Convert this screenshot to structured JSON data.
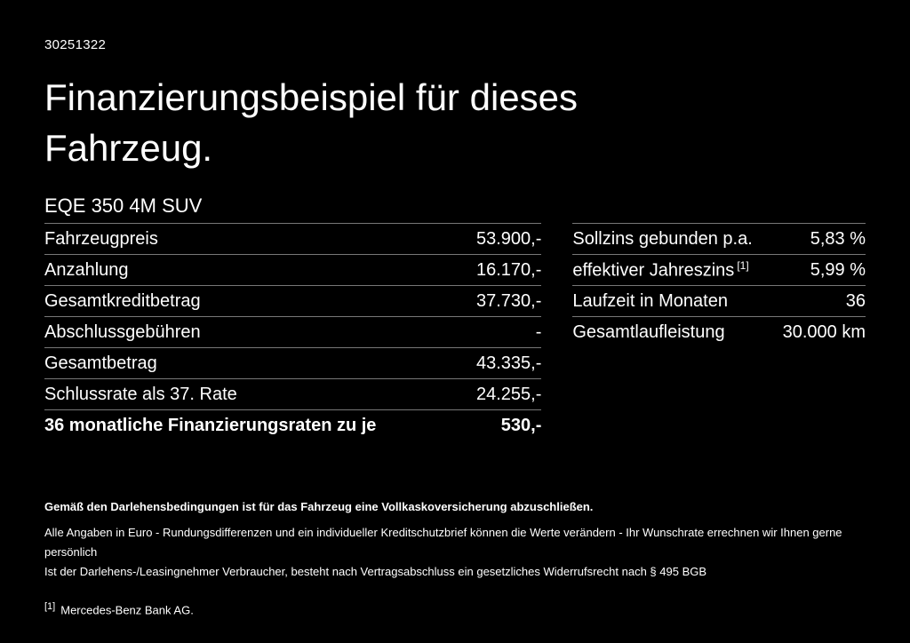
{
  "page": {
    "doc_number": "30251322",
    "title": "Finanzierungsbeispiel für dieses Fahrzeug.",
    "vehicle_model": "EQE 350 4M SUV"
  },
  "financing_table": {
    "rows": [
      {
        "label": "Fahrzeugpreis",
        "value": "53.900,-"
      },
      {
        "label": "Anzahlung",
        "value": "16.170,-"
      },
      {
        "label": "Gesamtkreditbetrag",
        "value": "37.730,-"
      },
      {
        "label": "Abschlussgebühren",
        "value": "-"
      },
      {
        "label": "Gesamtbetrag",
        "value": "43.335,-"
      },
      {
        "label": "Schlussrate als 37. Rate",
        "value": "24.255,-"
      },
      {
        "label": "36 monatliche Finanzierungsraten zu je",
        "value": "530,-"
      }
    ]
  },
  "conditions_table": {
    "rows": [
      {
        "label": "Sollzins gebunden p.a.",
        "sup": "",
        "value": "5,83 %"
      },
      {
        "label": "effektiver Jahreszins",
        "sup": "[1]",
        "value": "5,99 %"
      },
      {
        "label": "Laufzeit in Monaten",
        "sup": "",
        "value": "36"
      },
      {
        "label": "Gesamtlaufleistung",
        "sup": "",
        "value": "30.000 km"
      }
    ]
  },
  "footer": {
    "insurance_note": "Gemäß den Darlehensbedingungen ist für das Fahrzeug eine Vollkaskoversicherung abzuschließen.",
    "disclaimer_line1": "Alle Angaben in Euro - Rundungsdifferenzen und ein individueller Kreditschutzbrief können die Werte verändern - Ihr Wunschrate errechnen wir Ihnen gerne persönlich",
    "disclaimer_line2": "Ist der Darlehens-/Leasingnehmer Verbraucher, besteht nach Vertragsabschluss ein gesetzliches Widerrufsrecht nach § 495 BGB",
    "footnote_marker": "[1]",
    "footnote_text": "Mercedes-Benz Bank AG."
  }
}
